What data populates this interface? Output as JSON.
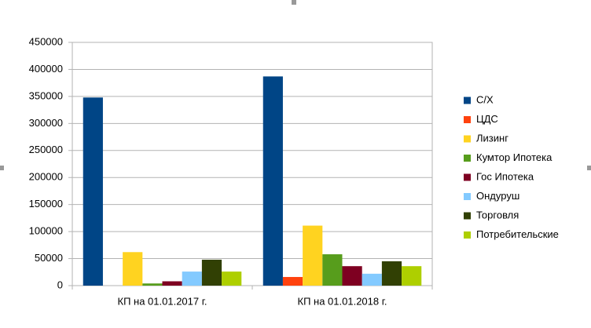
{
  "chart_data": {
    "type": "bar",
    "categories": [
      "КП на 01.01.2017 г.",
      "КП на 01.01.2018 г."
    ],
    "series": [
      {
        "name": "С/Х",
        "color": "#004586",
        "values": [
          348000,
          387000
        ]
      },
      {
        "name": "ЦДС",
        "color": "#ff420e",
        "values": [
          0,
          16000
        ]
      },
      {
        "name": "Лизинг",
        "color": "#ffd320",
        "values": [
          62000,
          111000
        ]
      },
      {
        "name": "Кумтор Ипотека",
        "color": "#579d1c",
        "values": [
          4000,
          58000
        ]
      },
      {
        "name": "Гос Ипотека",
        "color": "#7e0021",
        "values": [
          8000,
          36000
        ]
      },
      {
        "name": "Ондуруш",
        "color": "#83caff",
        "values": [
          26000,
          22000
        ]
      },
      {
        "name": "Торговля",
        "color": "#314004",
        "values": [
          48000,
          45000
        ]
      },
      {
        "name": "Потребительские",
        "color": "#aecf00",
        "values": [
          26000,
          36000
        ]
      }
    ],
    "ylim": [
      0,
      450000
    ],
    "yticks": [
      0,
      50000,
      100000,
      150000,
      200000,
      250000,
      300000,
      350000,
      400000,
      450000
    ],
    "grid": true,
    "legend": "right"
  }
}
